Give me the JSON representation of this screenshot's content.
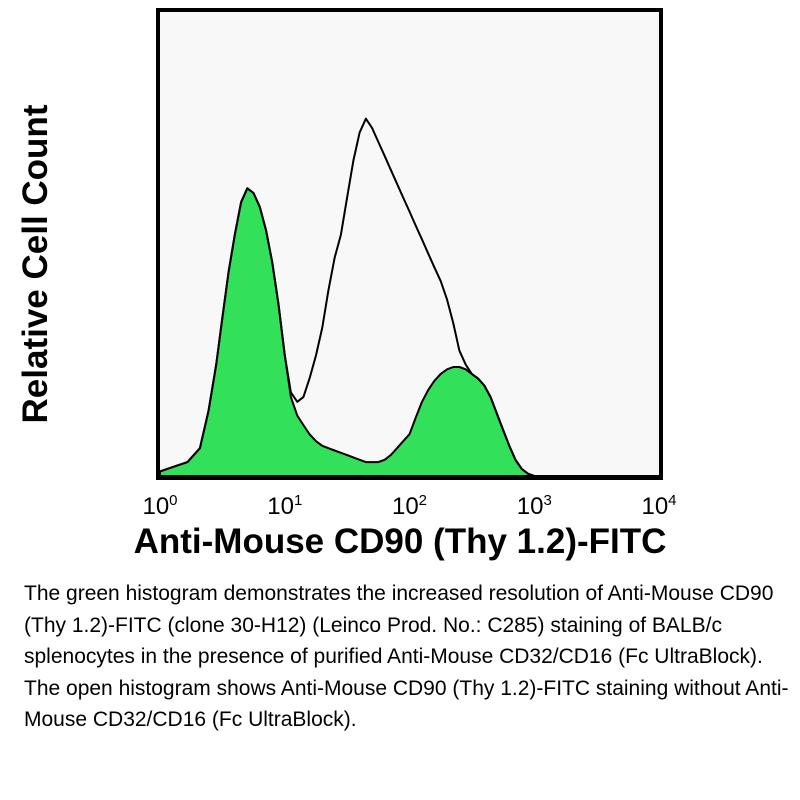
{
  "chart_data": {
    "type": "area",
    "xlabel": "Anti-Mouse CD90 (Thy 1.2)-FITC",
    "ylabel": "Relative Cell Count",
    "x_scale": "log",
    "xlim": [
      1,
      10000
    ],
    "ylim": [
      0,
      100
    ],
    "x_ticks": [
      {
        "base": "10",
        "exp": "0",
        "value": 1
      },
      {
        "base": "10",
        "exp": "1",
        "value": 10
      },
      {
        "base": "10",
        "exp": "2",
        "value": 100
      },
      {
        "base": "10",
        "exp": "3",
        "value": 1000
      },
      {
        "base": "10",
        "exp": "4",
        "value": 10000
      }
    ],
    "grid": false,
    "legend": "none",
    "series": [
      {
        "style": "filled",
        "color": "#33e05a",
        "x": [
          1,
          1.29,
          1.66,
          2.09,
          2.45,
          2.82,
          3.16,
          3.55,
          3.98,
          4.47,
          5.01,
          5.62,
          6.31,
          7.08,
          7.94,
          8.91,
          10,
          11.2,
          12.6,
          14.1,
          15.8,
          17.8,
          20,
          22.4,
          25.1,
          28.2,
          31.6,
          35.5,
          39.8,
          44.7,
          50.1,
          56.2,
          63.1,
          70.8,
          79.4,
          89.1,
          100,
          112,
          126,
          141,
          158,
          178,
          200,
          224,
          251,
          282,
          316,
          355,
          398,
          447,
          501,
          562,
          631,
          708,
          794,
          891,
          1000,
          10000
        ],
        "y": [
          1,
          2,
          3,
          6,
          14,
          24,
          34,
          44,
          52,
          59,
          62,
          61,
          58,
          53,
          46,
          37,
          26,
          17,
          13,
          11,
          9,
          7.5,
          6.5,
          6,
          5.5,
          5,
          4.5,
          4,
          3.5,
          3,
          3,
          3,
          3.5,
          4.5,
          6,
          7.5,
          9,
          12.5,
          16,
          18.5,
          20.5,
          22,
          23,
          23.5,
          23.5,
          23,
          22,
          21,
          19.5,
          17,
          13.5,
          10,
          6.5,
          3.5,
          1.5,
          0.5,
          0,
          0
        ]
      },
      {
        "style": "open",
        "color": "#000000",
        "x": [
          1,
          1.29,
          1.66,
          2.09,
          2.45,
          2.82,
          3.16,
          3.55,
          3.98,
          4.47,
          5.01,
          5.62,
          6.31,
          7.08,
          7.94,
          8.91,
          10,
          11.2,
          12.6,
          14.1,
          15.8,
          17.8,
          20,
          22.4,
          25.1,
          28.2,
          31.6,
          35.5,
          39.8,
          44.7,
          50.1,
          56.2,
          63.1,
          70.8,
          79.4,
          89.1,
          100,
          112,
          126,
          141,
          158,
          178,
          200,
          224,
          251,
          282,
          316,
          355,
          398,
          447,
          501,
          562,
          631,
          708,
          794,
          891,
          1000,
          10000
        ],
        "y": [
          1,
          2,
          3,
          6,
          14,
          24,
          34,
          44,
          52,
          59,
          62,
          61,
          58,
          53,
          46,
          37,
          26,
          18,
          16,
          17,
          21,
          26,
          32,
          40,
          47,
          52,
          60,
          68,
          74,
          77,
          75,
          72,
          69,
          66,
          63,
          60,
          57,
          54,
          51,
          48,
          45,
          42,
          38,
          33,
          27,
          24,
          22,
          21,
          19.5,
          17,
          13.5,
          10,
          6.5,
          3.5,
          1.5,
          0.5,
          0,
          0
        ]
      }
    ]
  },
  "caption": "The green histogram demonstrates the increased resolution of Anti-Mouse CD90 (Thy 1.2)-FITC (clone 30-H12) (Leinco Prod. No.: C285) staining of BALB/c splenocytes in the presence of purified Anti-Mouse CD32/CD16 (Fc UltraBlock). The open histogram shows Anti-Mouse CD90 (Thy 1.2)-FITC staining without Anti-Mouse CD32/CD16 (Fc UltraBlock)."
}
